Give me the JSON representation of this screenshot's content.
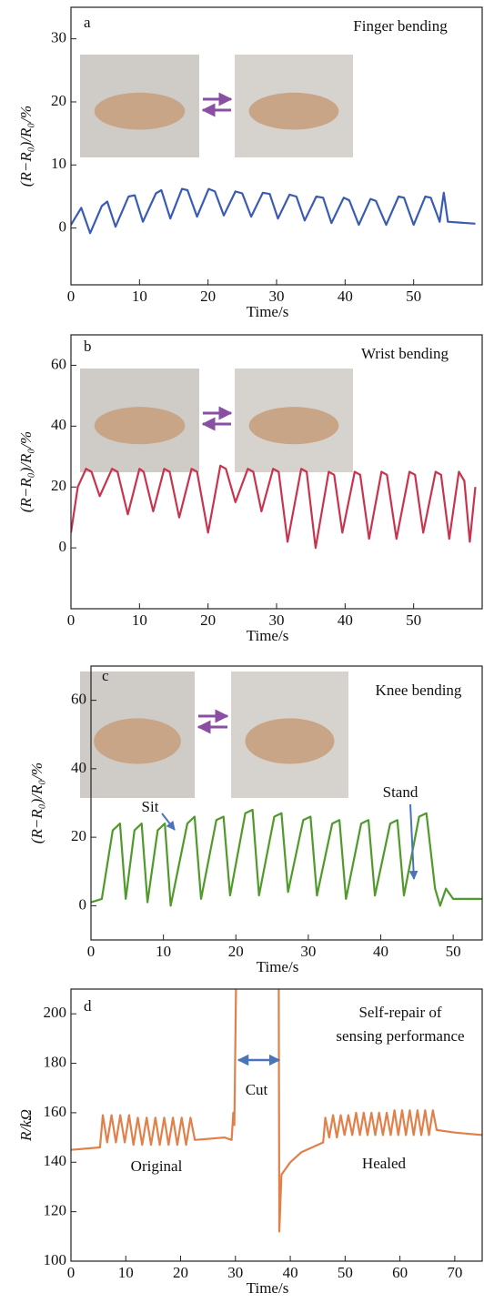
{
  "chart_data": [
    {
      "type": "line",
      "panel_label": "a",
      "annotations": [
        "Finger bending"
      ],
      "xlabel": "Time/s",
      "ylabel": "(R−R₀)/R₀/%",
      "color": "#3a5bb5",
      "xlim": [
        0,
        60
      ],
      "xticks": [
        0,
        10,
        20,
        30,
        40,
        50
      ],
      "ylim": [
        -9,
        35
      ],
      "yticks": [
        0,
        10,
        20,
        30
      ],
      "x": [
        0,
        1.5,
        2.8,
        4.5,
        5.3,
        6.5,
        8.4,
        9.3,
        10.5,
        12.4,
        13.2,
        14.5,
        16.2,
        17,
        18.4,
        20.1,
        21,
        22.3,
        24,
        25,
        26.3,
        28,
        29,
        30.2,
        31.9,
        32.9,
        34.1,
        35.8,
        36.8,
        38,
        39.8,
        40.6,
        42,
        43.7,
        44.5,
        46,
        47.8,
        48.6,
        50,
        51.7,
        52.5,
        53.8,
        54.4,
        55,
        59
      ],
      "values": [
        0.5,
        3.2,
        -0.8,
        3.5,
        4.2,
        0.2,
        5,
        5.2,
        1,
        5.5,
        6,
        1.5,
        6.2,
        6,
        1.8,
        6.2,
        5.8,
        2,
        5.8,
        5.5,
        1.8,
        5.6,
        5.4,
        1.5,
        5.3,
        5,
        1.2,
        5,
        4.8,
        0.8,
        4.8,
        4.4,
        0.5,
        4.6,
        4.3,
        0.5,
        5,
        4.8,
        0.5,
        5,
        4.8,
        1,
        5.6,
        1,
        0.7
      ]
    },
    {
      "type": "line",
      "panel_label": "b",
      "annotations": [
        "Wrist bending"
      ],
      "xlabel": "Time/s",
      "ylabel": "(R−R₀)/R₀/%",
      "color": "#c8344e",
      "xlim": [
        0,
        60
      ],
      "xticks": [
        0,
        10,
        20,
        30,
        40,
        50
      ],
      "ylim": [
        -20,
        70
      ],
      "yticks": [
        0,
        20,
        40,
        60
      ],
      "x": [
        0,
        1,
        2.2,
        3,
        4.2,
        6,
        6.8,
        8.3,
        10,
        10.6,
        12,
        13.6,
        14.4,
        15.8,
        17.6,
        18.4,
        20,
        21.8,
        22.6,
        24,
        25.8,
        26.6,
        27.8,
        29.5,
        30.3,
        31.6,
        33.6,
        34.4,
        35.7,
        37.6,
        38.4,
        39.6,
        41.4,
        42.2,
        43.5,
        45.3,
        46.1,
        47.5,
        49.4,
        50.2,
        51.4,
        53.2,
        54,
        55.2,
        56.6,
        57.4,
        58.2,
        59
      ],
      "values": [
        5,
        20,
        26,
        25,
        17,
        26,
        25,
        11,
        26,
        25,
        12,
        26,
        25,
        10,
        26,
        25,
        5,
        27,
        26,
        15,
        26,
        25,
        12,
        26,
        25,
        2,
        26,
        25,
        0,
        25,
        24,
        5,
        25,
        24,
        3,
        25,
        24,
        3,
        25,
        24,
        5,
        25,
        24,
        3,
        25,
        22,
        2,
        20
      ]
    },
    {
      "type": "line",
      "panel_label": "c",
      "annotations": [
        "Knee bending",
        "Sit",
        "Stand"
      ],
      "xlabel": "Time/s",
      "ylabel": "(R−R₀)/R₀/%",
      "color": "#4f9a2a",
      "xlim": [
        0,
        54
      ],
      "xticks": [
        0,
        10,
        20,
        30,
        40,
        50
      ],
      "ylim": [
        -10,
        70
      ],
      "yticks": [
        0,
        20,
        40,
        60
      ],
      "x": [
        0,
        1.5,
        3,
        4,
        4.8,
        6,
        7,
        7.8,
        9.2,
        10.2,
        11,
        13.3,
        14.3,
        15.2,
        17.3,
        18.3,
        19.2,
        21.3,
        22.3,
        23.2,
        25.3,
        26.3,
        27.2,
        29.3,
        30.3,
        31.2,
        33.3,
        34.3,
        35.2,
        37.3,
        38.3,
        39.2,
        41.3,
        42.3,
        43.2,
        45.3,
        46.3,
        47.5,
        48.2,
        49,
        50,
        54
      ],
      "values": [
        1,
        2,
        22,
        24,
        2,
        22,
        24,
        1,
        22,
        24,
        0,
        24,
        26,
        2,
        25,
        26,
        3,
        27,
        28,
        3,
        26,
        27,
        4,
        25,
        26,
        3,
        24,
        25,
        2,
        24,
        25,
        3,
        24,
        25,
        3,
        26,
        27,
        5,
        0,
        5,
        2,
        2
      ]
    },
    {
      "type": "line",
      "panel_label": "d",
      "annotations": [
        "Self-repair of",
        "sensing performance",
        "Cut",
        "Original",
        "Healed"
      ],
      "xlabel": "Time/s",
      "ylabel": "R/kΩ",
      "color": "#e0804a",
      "xlim": [
        0,
        75
      ],
      "xticks": [
        0,
        10,
        20,
        30,
        40,
        50,
        60,
        70
      ],
      "ylim": [
        100,
        210
      ],
      "yticks": [
        100,
        120,
        140,
        160,
        180,
        200
      ],
      "x": [
        0,
        5.3,
        5.8,
        6.6,
        7.4,
        8.2,
        9.0,
        9.8,
        10.6,
        11.4,
        12.2,
        13.0,
        13.8,
        14.6,
        15.4,
        16.2,
        17.0,
        17.8,
        18.6,
        19.4,
        20.2,
        21.0,
        21.8,
        22.6,
        28,
        29.3,
        29.6,
        29.8,
        30.1,
        34,
        37.9,
        38.0,
        38.4,
        40,
        42,
        45,
        46,
        46.4,
        47.1,
        47.8,
        48.5,
        49.2,
        49.9,
        50.6,
        51.3,
        52.0,
        52.7,
        53.4,
        54.1,
        54.8,
        55.5,
        56.2,
        56.9,
        57.6,
        58.3,
        59.0,
        59.7,
        60.4,
        61.1,
        61.8,
        62.5,
        63.2,
        63.9,
        64.6,
        65.3,
        66.0,
        66.7,
        70,
        75
      ],
      "values": [
        145,
        146,
        159,
        148,
        159,
        148,
        159,
        148,
        159,
        147,
        158,
        147,
        158,
        147,
        158,
        147,
        158,
        147,
        158,
        147,
        158,
        147,
        158,
        149,
        150,
        149,
        160,
        155,
        210,
        null,
        210,
        112,
        135,
        140,
        144,
        147,
        148,
        158,
        150,
        159,
        150,
        159,
        151,
        159,
        151,
        160,
        151,
        160,
        151,
        160,
        151,
        160,
        151,
        160,
        151,
        161,
        151,
        161,
        151,
        161,
        151,
        161,
        151,
        161,
        151,
        161,
        153,
        152,
        151
      ]
    }
  ]
}
